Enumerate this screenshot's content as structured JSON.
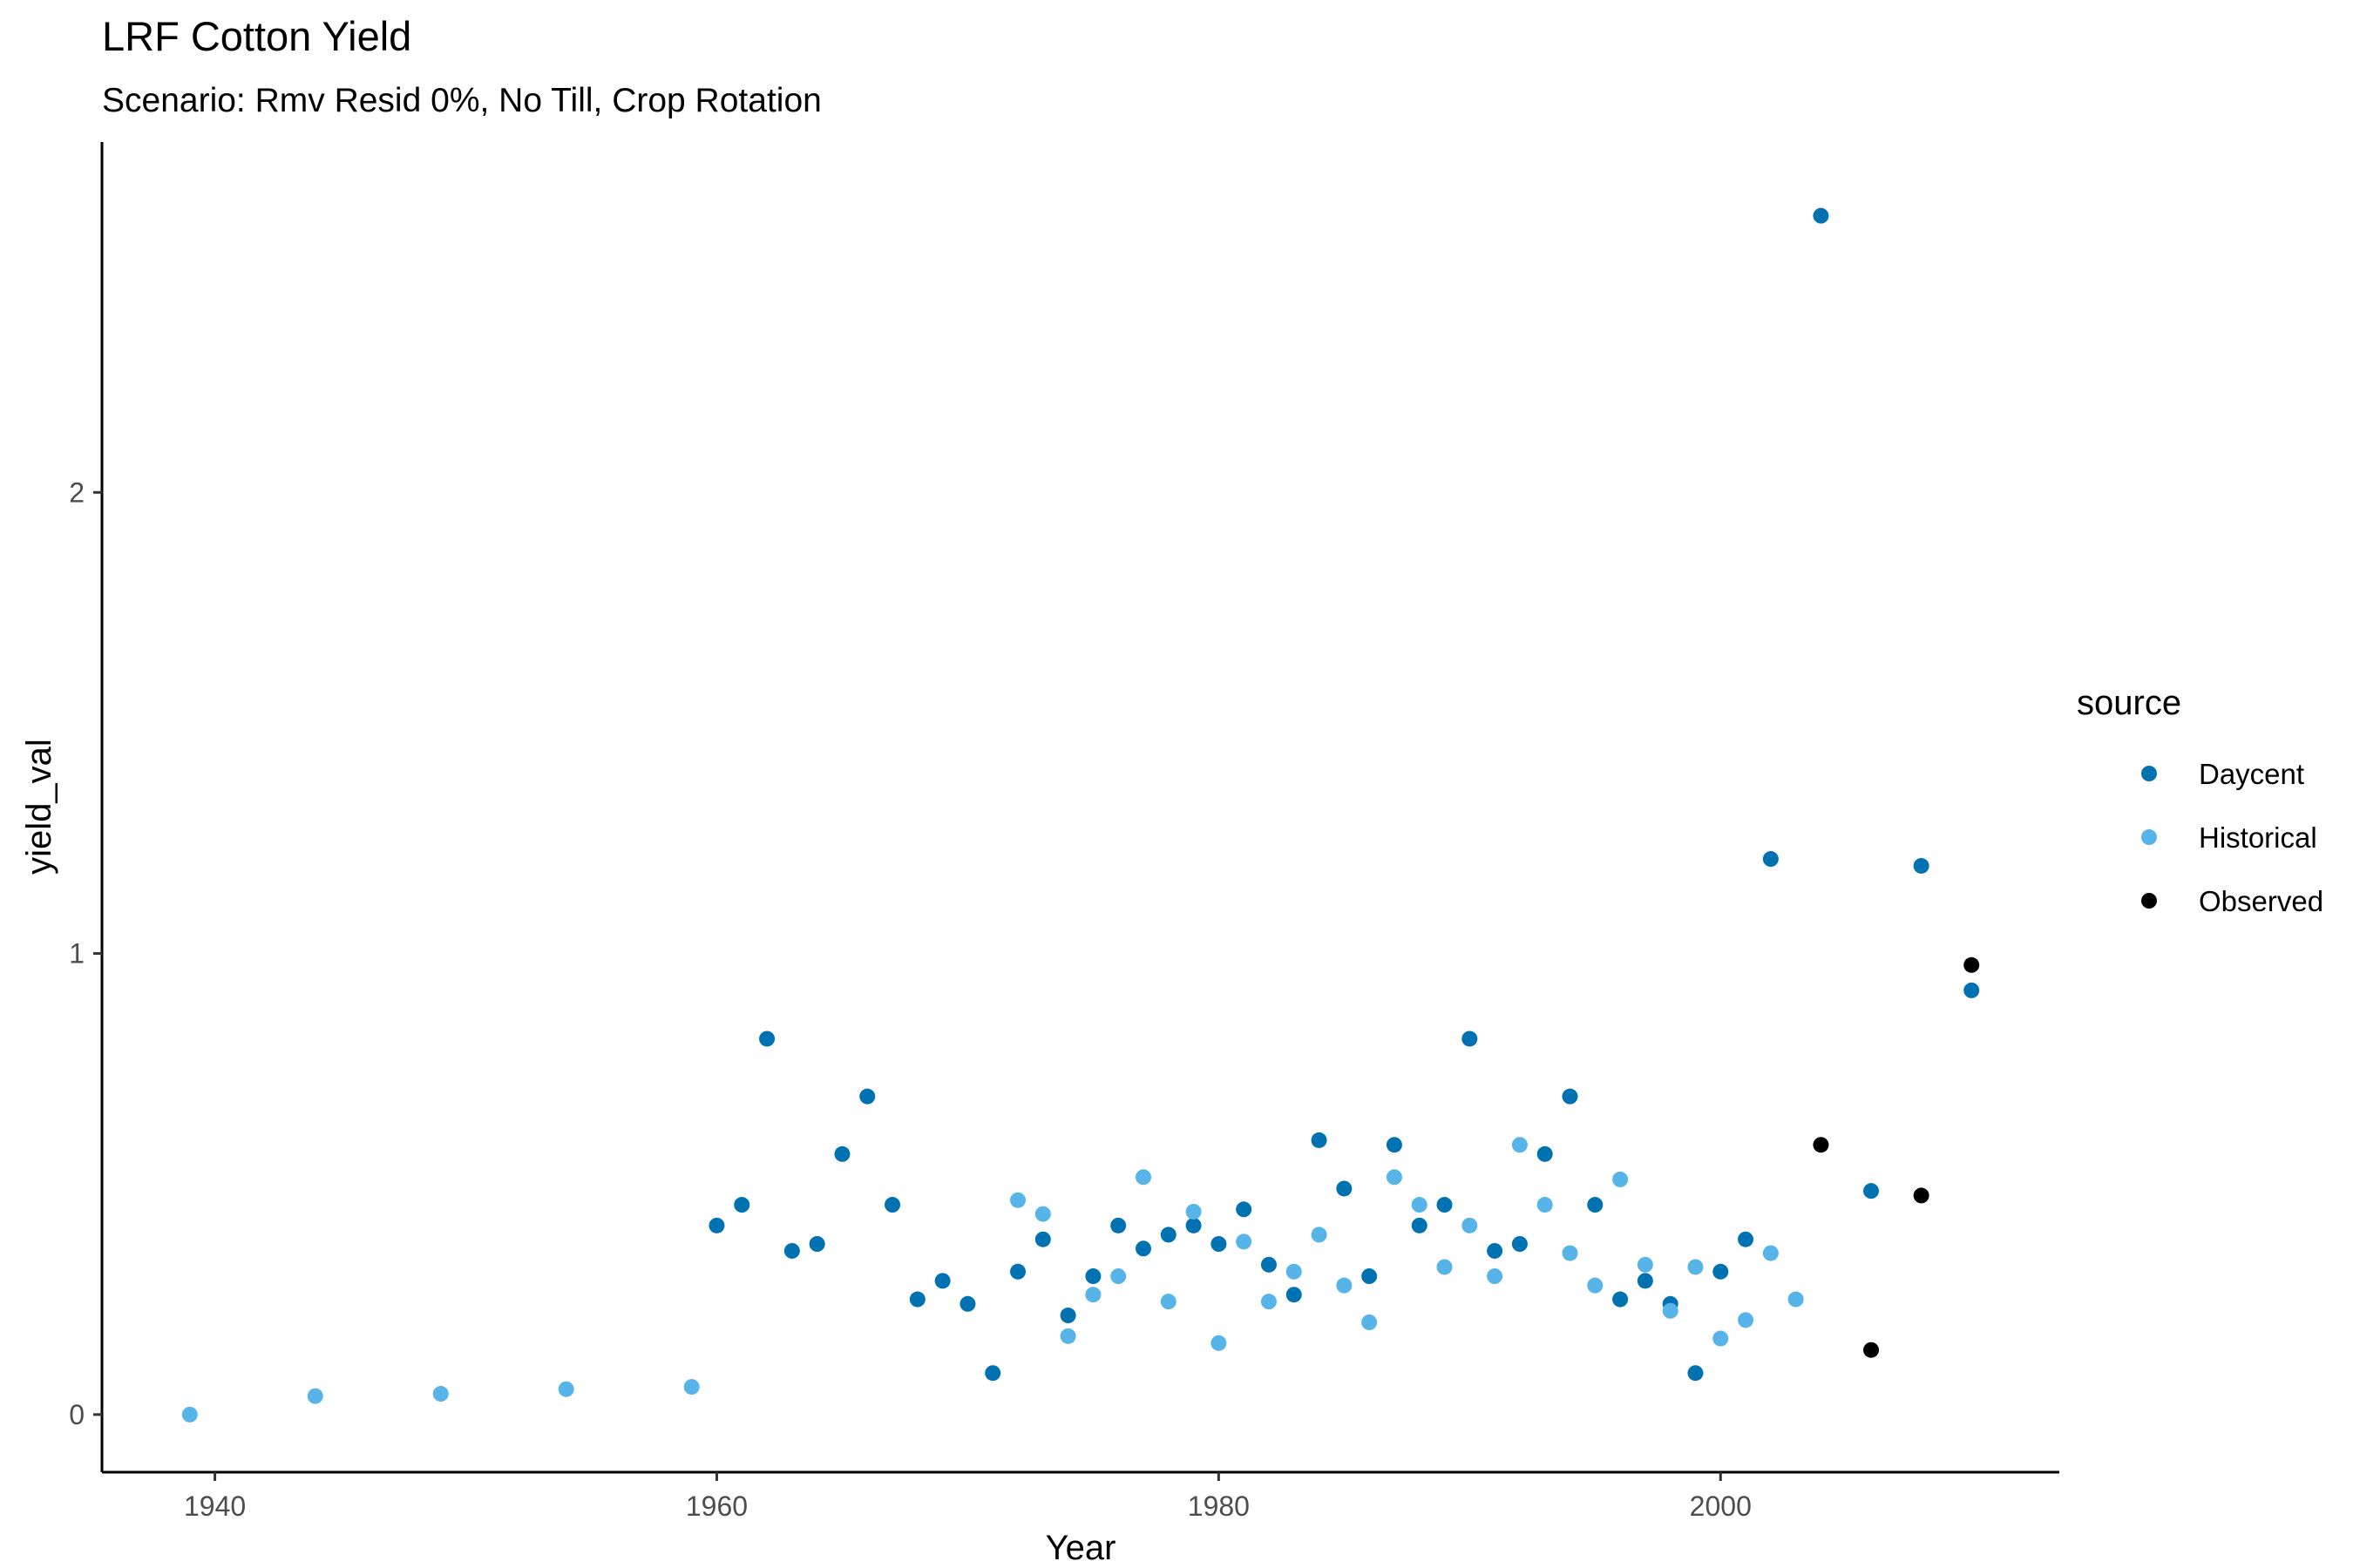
{
  "chart_data": {
    "type": "scatter",
    "title": "LRF Cotton Yield",
    "subtitle": "Scenario: Rmv Resid 0%, No Till, Crop Rotation",
    "xlabel": "Year",
    "ylabel": "yield_val",
    "xlim": [
      1935.5,
      2013.5
    ],
    "ylim": [
      -0.125,
      2.76
    ],
    "xticks": [
      1940,
      1960,
      1980,
      2000
    ],
    "yticks": [
      0,
      1,
      2
    ],
    "grid": false,
    "legend": {
      "title": "source",
      "position": "right"
    },
    "series": [
      {
        "name": "Daycent",
        "color": "#0072b2",
        "points": [
          [
            1960,
            0.41
          ],
          [
            1961,
            0.455
          ],
          [
            1962,
            0.815
          ],
          [
            1963,
            0.355
          ],
          [
            1964,
            0.37
          ],
          [
            1965,
            0.565
          ],
          [
            1966,
            0.69
          ],
          [
            1967,
            0.455
          ],
          [
            1968,
            0.25
          ],
          [
            1969,
            0.29
          ],
          [
            1970,
            0.24
          ],
          [
            1971,
            0.09
          ],
          [
            1972,
            0.31
          ],
          [
            1973,
            0.38
          ],
          [
            1974,
            0.215
          ],
          [
            1975,
            0.3
          ],
          [
            1976,
            0.41
          ],
          [
            1977,
            0.36
          ],
          [
            1978,
            0.39
          ],
          [
            1979,
            0.41
          ],
          [
            1980,
            0.37
          ],
          [
            1981,
            0.445
          ],
          [
            1982,
            0.325
          ],
          [
            1983,
            0.26
          ],
          [
            1984,
            0.595
          ],
          [
            1985,
            0.49
          ],
          [
            1986,
            0.3
          ],
          [
            1987,
            0.585
          ],
          [
            1988,
            0.41
          ],
          [
            1989,
            0.455
          ],
          [
            1990,
            0.815
          ],
          [
            1991,
            0.355
          ],
          [
            1992,
            0.37
          ],
          [
            1993,
            0.565
          ],
          [
            1994,
            0.69
          ],
          [
            1995,
            0.455
          ],
          [
            1996,
            0.25
          ],
          [
            1997,
            0.29
          ],
          [
            1998,
            0.24
          ],
          [
            1999,
            0.09
          ],
          [
            2000,
            0.31
          ],
          [
            2001,
            0.38
          ],
          [
            2002,
            1.205
          ],
          [
            2004,
            2.6
          ],
          [
            2006,
            0.485
          ],
          [
            2008,
            1.19
          ],
          [
            2010,
            0.92
          ]
        ]
      },
      {
        "name": "Historical",
        "color": "#56b4e9",
        "points": [
          [
            1939,
            0.0
          ],
          [
            1944,
            0.04
          ],
          [
            1949,
            0.045
          ],
          [
            1954,
            0.055
          ],
          [
            1959,
            0.06
          ],
          [
            1972,
            0.465
          ],
          [
            1973,
            0.435
          ],
          [
            1974,
            0.17
          ],
          [
            1975,
            0.26
          ],
          [
            1976,
            0.3
          ],
          [
            1977,
            0.515
          ],
          [
            1978,
            0.245
          ],
          [
            1979,
            0.44
          ],
          [
            1980,
            0.155
          ],
          [
            1981,
            0.375
          ],
          [
            1982,
            0.245
          ],
          [
            1983,
            0.31
          ],
          [
            1984,
            0.39
          ],
          [
            1985,
            0.28
          ],
          [
            1986,
            0.2
          ],
          [
            1987,
            0.515
          ],
          [
            1988,
            0.455
          ],
          [
            1989,
            0.32
          ],
          [
            1990,
            0.41
          ],
          [
            1991,
            0.3
          ],
          [
            1992,
            0.585
          ],
          [
            1993,
            0.455
          ],
          [
            1994,
            0.35
          ],
          [
            1995,
            0.28
          ],
          [
            1996,
            0.51
          ],
          [
            1997,
            0.325
          ],
          [
            1998,
            0.225
          ],
          [
            1999,
            0.32
          ],
          [
            2000,
            0.165
          ],
          [
            2001,
            0.205
          ],
          [
            2002,
            0.35
          ],
          [
            2003,
            0.25
          ]
        ]
      },
      {
        "name": "Observed",
        "color": "#000000",
        "points": [
          [
            2004,
            0.585
          ],
          [
            2006,
            0.14
          ],
          [
            2008,
            0.475
          ],
          [
            2010,
            0.975
          ]
        ]
      }
    ]
  }
}
